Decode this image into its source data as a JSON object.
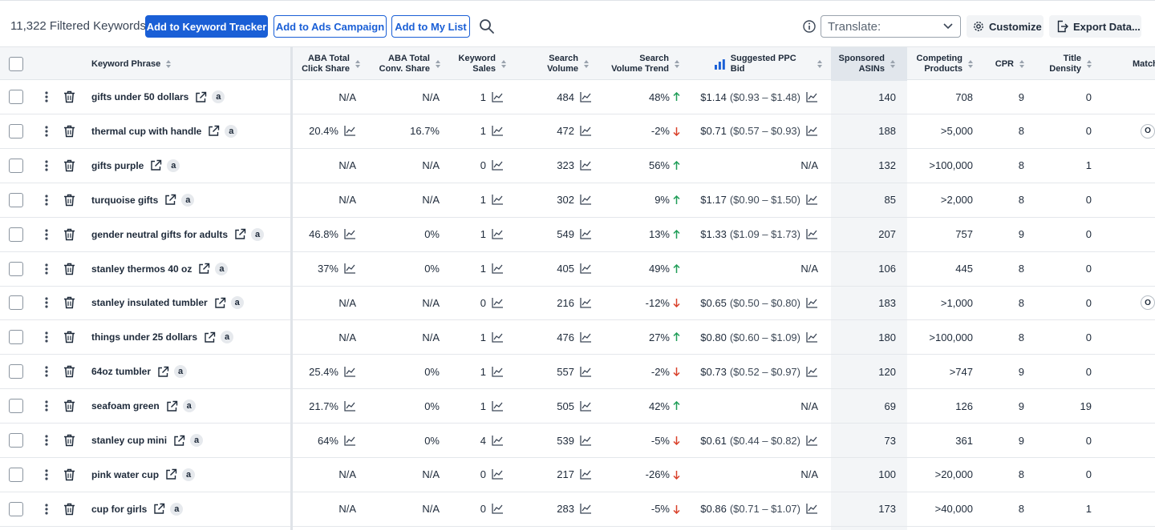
{
  "toolbar": {
    "filtered_count": "11,322 Filtered Keywords",
    "add_tracker": "Add to Keyword Tracker",
    "add_ads": "Add to Ads Campaign",
    "add_list": "Add to My List",
    "translate_placeholder": "Translate:",
    "customize": "Customize",
    "export": "Export Data..."
  },
  "columns": {
    "keyword": "Keyword Phrase",
    "aba_click": "ABA Total Click Share",
    "aba_conv": "ABA Total Conv. Share",
    "kw_sales": "Keyword Sales",
    "search_volume": "Search Volume",
    "sv_trend": "Search Volume Trend",
    "ppc": "Suggested PPC Bid",
    "sponsored": "Sponsored ASINs",
    "competing": "Competing Products",
    "cpr": "CPR",
    "title_density": "Title Density",
    "match": "Match"
  },
  "amazon_badge": "a",
  "match_badge": "O",
  "rows": [
    {
      "keyword": "gifts under 50 dollars",
      "click": "N/A",
      "conv": "N/A",
      "sales": "1",
      "sv": "484",
      "trend": "48%",
      "dir": "up",
      "ppc": "$1.14",
      "range": "($0.93 – $1.48)",
      "sponsored": "140",
      "competing": "708",
      "cpr": "9",
      "density": "0",
      "match": ""
    },
    {
      "keyword": "thermal cup with handle",
      "click": "20.4%",
      "conv": "16.7%",
      "sales": "1",
      "sv": "472",
      "trend": "-2%",
      "dir": "down",
      "ppc": "$0.71",
      "range": "($0.57 – $0.93)",
      "sponsored": "188",
      "competing": ">5,000",
      "cpr": "8",
      "density": "0",
      "match": "O"
    },
    {
      "keyword": "gifts purple",
      "click": "N/A",
      "conv": "N/A",
      "sales": "0",
      "sv": "323",
      "trend": "56%",
      "dir": "up",
      "ppc": "N/A",
      "range": "",
      "sponsored": "132",
      "competing": ">100,000",
      "cpr": "8",
      "density": "1",
      "match": ""
    },
    {
      "keyword": "turquoise gifts",
      "click": "N/A",
      "conv": "N/A",
      "sales": "1",
      "sv": "302",
      "trend": "9%",
      "dir": "up",
      "ppc": "$1.17",
      "range": "($0.90 – $1.50)",
      "sponsored": "85",
      "competing": ">2,000",
      "cpr": "8",
      "density": "0",
      "match": ""
    },
    {
      "keyword": "gender neutral gifts for adults",
      "click": "46.8%",
      "conv": "0%",
      "sales": "1",
      "sv": "549",
      "trend": "13%",
      "dir": "up",
      "ppc": "$1.33",
      "range": "($1.09 – $1.73)",
      "sponsored": "207",
      "competing": "757",
      "cpr": "9",
      "density": "0",
      "match": ""
    },
    {
      "keyword": "stanley thermos 40 oz",
      "click": "37%",
      "conv": "0%",
      "sales": "1",
      "sv": "405",
      "trend": "49%",
      "dir": "up",
      "ppc": "N/A",
      "range": "",
      "sponsored": "106",
      "competing": "445",
      "cpr": "8",
      "density": "0",
      "match": ""
    },
    {
      "keyword": "stanley insulated tumbler",
      "click": "N/A",
      "conv": "N/A",
      "sales": "0",
      "sv": "216",
      "trend": "-12%",
      "dir": "down",
      "ppc": "$0.65",
      "range": "($0.50 – $0.80)",
      "sponsored": "183",
      "competing": ">1,000",
      "cpr": "8",
      "density": "0",
      "match": "O"
    },
    {
      "keyword": "things under 25 dollars",
      "click": "N/A",
      "conv": "N/A",
      "sales": "1",
      "sv": "476",
      "trend": "27%",
      "dir": "up",
      "ppc": "$0.80",
      "range": "($0.60 – $1.09)",
      "sponsored": "180",
      "competing": ">100,000",
      "cpr": "8",
      "density": "0",
      "match": ""
    },
    {
      "keyword": "64oz tumbler",
      "click": "25.4%",
      "conv": "0%",
      "sales": "1",
      "sv": "557",
      "trend": "-2%",
      "dir": "down",
      "ppc": "$0.73",
      "range": "($0.52 – $0.97)",
      "sponsored": "120",
      "competing": ">747",
      "cpr": "9",
      "density": "0",
      "match": ""
    },
    {
      "keyword": "seafoam green",
      "click": "21.7%",
      "conv": "0%",
      "sales": "1",
      "sv": "505",
      "trend": "42%",
      "dir": "up",
      "ppc": "N/A",
      "range": "",
      "sponsored": "69",
      "competing": "126",
      "cpr": "9",
      "density": "19",
      "match": ""
    },
    {
      "keyword": "stanley cup mini",
      "click": "64%",
      "conv": "0%",
      "sales": "4",
      "sv": "539",
      "trend": "-5%",
      "dir": "down",
      "ppc": "$0.61",
      "range": "($0.44 – $0.82)",
      "sponsored": "73",
      "competing": "361",
      "cpr": "9",
      "density": "0",
      "match": ""
    },
    {
      "keyword": "pink water cup",
      "click": "N/A",
      "conv": "N/A",
      "sales": "0",
      "sv": "217",
      "trend": "-26%",
      "dir": "down",
      "ppc": "N/A",
      "range": "",
      "sponsored": "100",
      "competing": ">20,000",
      "cpr": "8",
      "density": "0",
      "match": ""
    },
    {
      "keyword": "cup for girls",
      "click": "N/A",
      "conv": "N/A",
      "sales": "0",
      "sv": "283",
      "trend": "-5%",
      "dir": "down",
      "ppc": "$0.86",
      "range": "($0.71 – $1.07)",
      "sponsored": "173",
      "competing": ">40,000",
      "cpr": "8",
      "density": "1",
      "match": ""
    }
  ],
  "colors": {
    "primary": "#1a5fd6",
    "up": "#1f9d57",
    "down": "#d9412b",
    "highlight": "#e1e6ec"
  }
}
